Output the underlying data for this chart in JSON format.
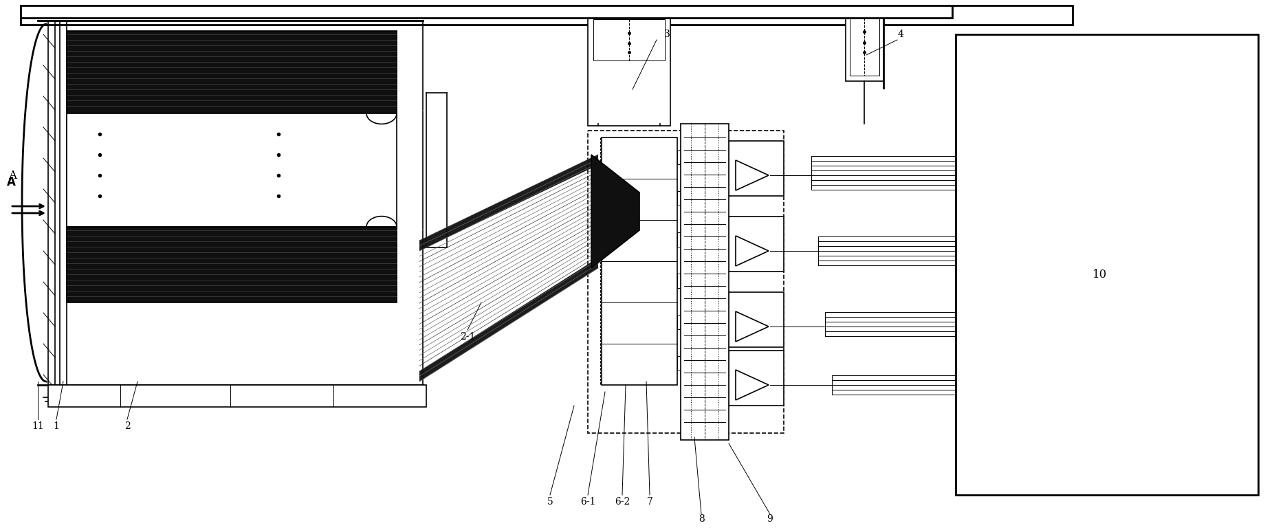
{
  "bg_color": "#ffffff",
  "line_color": "#000000",
  "fig_width": 18.69,
  "fig_height": 7.71,
  "dpi": 100,
  "lw_thick": 2.0,
  "lw_med": 1.2,
  "lw_thin": 0.7,
  "dark_fill": "#101010",
  "gray_fill": "#888888",
  "font_size": 10
}
